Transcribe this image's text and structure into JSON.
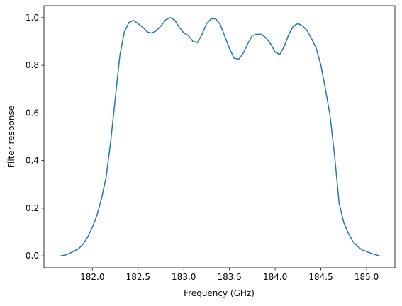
{
  "chart_data": {
    "type": "line",
    "xlabel": "Frequency (GHz)",
    "ylabel": "Filter response",
    "x": [
      181.65,
      181.7,
      181.75,
      181.8,
      181.85,
      181.9,
      181.95,
      182.0,
      182.05,
      182.1,
      182.15,
      182.2,
      182.25,
      182.3,
      182.35,
      182.4,
      182.45,
      182.5,
      182.55,
      182.6,
      182.65,
      182.7,
      182.75,
      182.8,
      182.85,
      182.9,
      182.95,
      183.0,
      183.05,
      183.1,
      183.15,
      183.2,
      183.25,
      183.3,
      183.35,
      183.4,
      183.45,
      183.5,
      183.55,
      183.6,
      183.65,
      183.7,
      183.75,
      183.8,
      183.85,
      183.9,
      183.95,
      184.0,
      184.05,
      184.1,
      184.15,
      184.2,
      184.25,
      184.3,
      184.35,
      184.4,
      184.45,
      184.5,
      184.55,
      184.6,
      184.65,
      184.7,
      184.75,
      184.8,
      184.85,
      184.9,
      184.95,
      185.0,
      185.05,
      185.1,
      185.14
    ],
    "series": [
      {
        "color": "#1f77b4",
        "values": [
          0.0,
          0.003,
          0.01,
          0.02,
          0.03,
          0.05,
          0.08,
          0.12,
          0.17,
          0.24,
          0.33,
          0.48,
          0.66,
          0.84,
          0.94,
          0.98,
          0.988,
          0.975,
          0.96,
          0.94,
          0.935,
          0.945,
          0.965,
          0.99,
          1.0,
          0.99,
          0.96,
          0.935,
          0.925,
          0.9,
          0.895,
          0.93,
          0.975,
          0.995,
          0.995,
          0.97,
          0.92,
          0.87,
          0.83,
          0.825,
          0.85,
          0.89,
          0.925,
          0.93,
          0.93,
          0.915,
          0.89,
          0.855,
          0.845,
          0.88,
          0.93,
          0.965,
          0.975,
          0.965,
          0.945,
          0.91,
          0.87,
          0.8,
          0.7,
          0.59,
          0.42,
          0.22,
          0.14,
          0.095,
          0.06,
          0.04,
          0.025,
          0.018,
          0.01,
          0.005,
          0.0
        ]
      }
    ],
    "xlim": [
      181.47,
      185.31
    ],
    "ylim": [
      -0.05,
      1.05
    ],
    "xticks": [
      {
        "value": 182,
        "label": "182.0"
      },
      182.5,
      {
        "value": 183,
        "label": "183.0"
      },
      183.5,
      {
        "value": 184,
        "label": "184.0"
      },
      184.5,
      {
        "value": 185,
        "label": "185.0"
      }
    ],
    "yticks": [
      {
        "value": 0,
        "label": "0.0"
      },
      0.2,
      0.4,
      0.6,
      0.8,
      {
        "value": 1,
        "label": "1.0"
      }
    ]
  }
}
